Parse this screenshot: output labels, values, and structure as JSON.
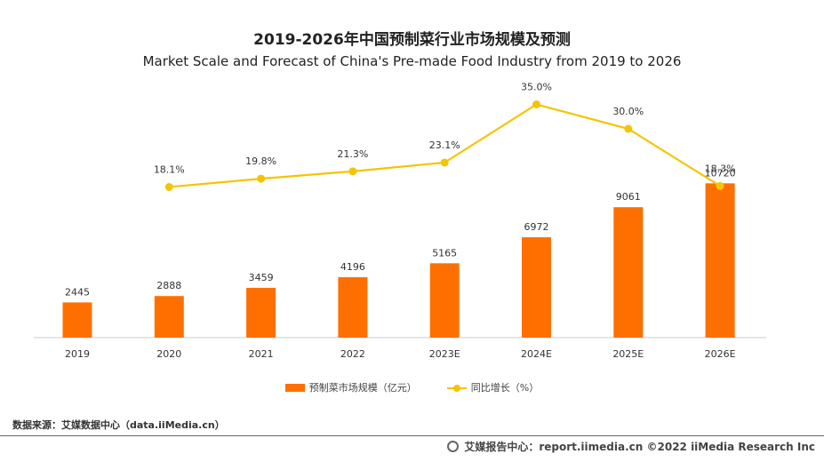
{
  "chart_data": {
    "type": "bar+line",
    "title": "2019-2026年中国预制菜行业市场规模及预测",
    "subtitle": "Market Scale and Forecast of China's Pre-made Food Industry from 2019 to 2026",
    "categories": [
      "2019",
      "2020",
      "2021",
      "2022",
      "2023E",
      "2024E",
      "2025E",
      "2026E"
    ],
    "series": [
      {
        "name": "预制菜市场规模（亿元）",
        "type": "bar",
        "color": "#ff6f00",
        "values": [
          2445,
          2888,
          3459,
          4196,
          5165,
          6972,
          9061,
          10720
        ],
        "labels": [
          "2445",
          "2888",
          "3459",
          "4196",
          "5165",
          "6972",
          "9061",
          "10720"
        ]
      },
      {
        "name": "同比增长（%）",
        "type": "line",
        "color": "#f5c400",
        "values": [
          null,
          18.1,
          19.8,
          21.3,
          23.1,
          35.0,
          30.0,
          18.3
        ],
        "labels": [
          "",
          "18.1%",
          "19.8%",
          "21.3%",
          "23.1%",
          "35.0%",
          "30.0%",
          "18.3%"
        ]
      }
    ],
    "legend_position": "bottom",
    "grid": false
  },
  "source": "数据来源：艾媒数据中心（data.iiMedia.cn）",
  "footer": "艾媒报告中心：report.iimedia.cn  ©2022  iiMedia Research  Inc"
}
